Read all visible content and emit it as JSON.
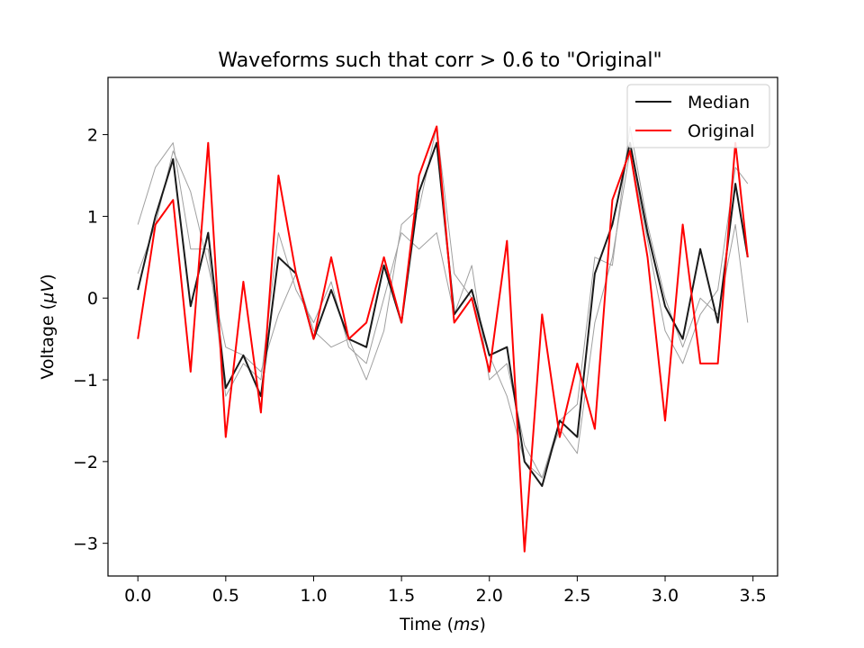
{
  "chart_data": {
    "type": "line",
    "title": "Waveforms such that corr > 0.6 to \"Original\"",
    "xlabel_prefix": "Time (",
    "xlabel_unit": "ms",
    "xlabel_suffix": ")",
    "ylabel_prefix": "Voltage (",
    "ylabel_unit": "μV",
    "ylabel_suffix": ")",
    "xlim": [
      -0.17,
      3.64
    ],
    "ylim": [
      -3.4,
      2.7
    ],
    "xticks": [
      0.0,
      0.5,
      1.0,
      1.5,
      2.0,
      2.5,
      3.0,
      3.5
    ],
    "xtick_labels": [
      "0.0",
      "0.5",
      "1.0",
      "1.5",
      "2.0",
      "2.5",
      "3.0",
      "3.5"
    ],
    "yticks": [
      -3,
      -2,
      -1,
      0,
      1,
      2
    ],
    "ytick_labels": [
      "−3",
      "−2",
      "−1",
      "0",
      "1",
      "2"
    ],
    "grid": false,
    "legend_position": "top-right",
    "x": [
      0.0,
      0.1,
      0.2,
      0.3,
      0.4,
      0.5,
      0.6,
      0.7,
      0.8,
      0.9,
      1.0,
      1.1,
      1.2,
      1.3,
      1.4,
      1.5,
      1.6,
      1.7,
      1.8,
      1.9,
      2.0,
      2.1,
      2.2,
      2.3,
      2.4,
      2.5,
      2.6,
      2.7,
      2.8,
      2.9,
      3.0,
      3.1,
      3.2,
      3.3,
      3.4,
      3.47
    ],
    "series": [
      {
        "color": "#a0a0a0",
        "width": 1,
        "values": [
          0.9,
          1.6,
          1.9,
          0.6,
          0.6,
          -1.2,
          -0.8,
          -1.0,
          0.8,
          0.1,
          -0.3,
          0.2,
          -0.6,
          -0.8,
          0.0,
          0.8,
          0.6,
          0.8,
          -0.2,
          0.4,
          -1.0,
          -0.8,
          -1.8,
          -2.2,
          -1.5,
          -1.3,
          0.5,
          0.4,
          2.1,
          0.9,
          0.0,
          -0.6,
          0.0,
          -0.2,
          0.9,
          -0.3
        ]
      },
      {
        "color": "#a0a0a0",
        "width": 1,
        "values": [
          0.3,
          0.9,
          1.8,
          1.3,
          0.4,
          -0.6,
          -0.7,
          -0.9,
          -0.2,
          0.3,
          -0.4,
          -0.6,
          -0.5,
          -1.0,
          -0.4,
          0.9,
          1.1,
          2.1,
          0.3,
          0.0,
          -0.7,
          -1.2,
          -2.0,
          -2.2,
          -1.6,
          -1.9,
          -0.3,
          0.5,
          1.8,
          0.7,
          -0.4,
          -0.8,
          -0.2,
          0.1,
          1.6,
          1.4
        ]
      },
      {
        "name": "Median",
        "color": "#1a1a1a",
        "width": 2,
        "values": [
          0.1,
          1.0,
          1.7,
          -0.1,
          0.8,
          -1.1,
          -0.7,
          -1.2,
          0.5,
          0.3,
          -0.5,
          0.1,
          -0.5,
          -0.6,
          0.4,
          -0.3,
          1.3,
          1.9,
          -0.2,
          0.1,
          -0.7,
          -0.6,
          -2.0,
          -2.3,
          -1.5,
          -1.7,
          0.3,
          0.9,
          1.9,
          0.8,
          -0.1,
          -0.5,
          0.6,
          -0.3,
          1.4,
          0.5
        ]
      },
      {
        "name": "Original",
        "color": "#ff0000",
        "width": 2,
        "values": [
          -0.5,
          0.9,
          1.2,
          -0.9,
          1.9,
          -1.7,
          0.2,
          -1.4,
          1.5,
          0.3,
          -0.5,
          0.5,
          -0.5,
          -0.3,
          0.5,
          -0.3,
          1.5,
          2.1,
          -0.3,
          0.0,
          -0.9,
          0.7,
          -3.1,
          -0.2,
          -1.7,
          -0.8,
          -1.6,
          1.2,
          1.8,
          0.5,
          -1.5,
          0.9,
          -0.8,
          -0.8,
          1.9,
          0.5
        ]
      }
    ]
  }
}
